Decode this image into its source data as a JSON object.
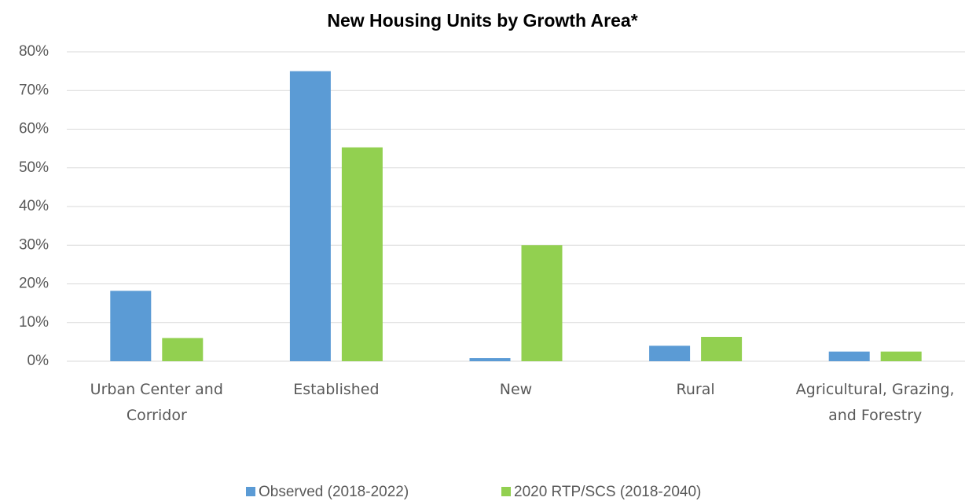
{
  "chart_data": {
    "type": "bar",
    "title": "New Housing Units by Growth Area*",
    "categories": [
      "Urban Center and Corridor",
      "Established",
      "New",
      "Rural",
      "Agricultural, Grazing, and Forestry"
    ],
    "series": [
      {
        "name": "Observed (2018-2022)",
        "color": "#5b9bd5",
        "values": [
          18.2,
          75,
          0.8,
          4,
          2.5
        ]
      },
      {
        "name": "2020 RTP/SCS (2018-2040)",
        "color": "#92d050",
        "values": [
          6,
          55.3,
          30,
          6.3,
          2.5
        ]
      }
    ],
    "ylim": [
      0,
      80
    ],
    "yticks": [
      {
        "value": 0,
        "label": "0%"
      },
      {
        "value": 10,
        "label": "10%"
      },
      {
        "value": 20,
        "label": "20%"
      },
      {
        "value": 30,
        "label": "30%"
      },
      {
        "value": 40,
        "label": "40%"
      },
      {
        "value": 50,
        "label": "50%"
      },
      {
        "value": 60,
        "label": "60%"
      },
      {
        "value": 70,
        "label": "70%"
      },
      {
        "value": 80,
        "label": "80%"
      }
    ],
    "grid": true,
    "legend": "bottom"
  }
}
